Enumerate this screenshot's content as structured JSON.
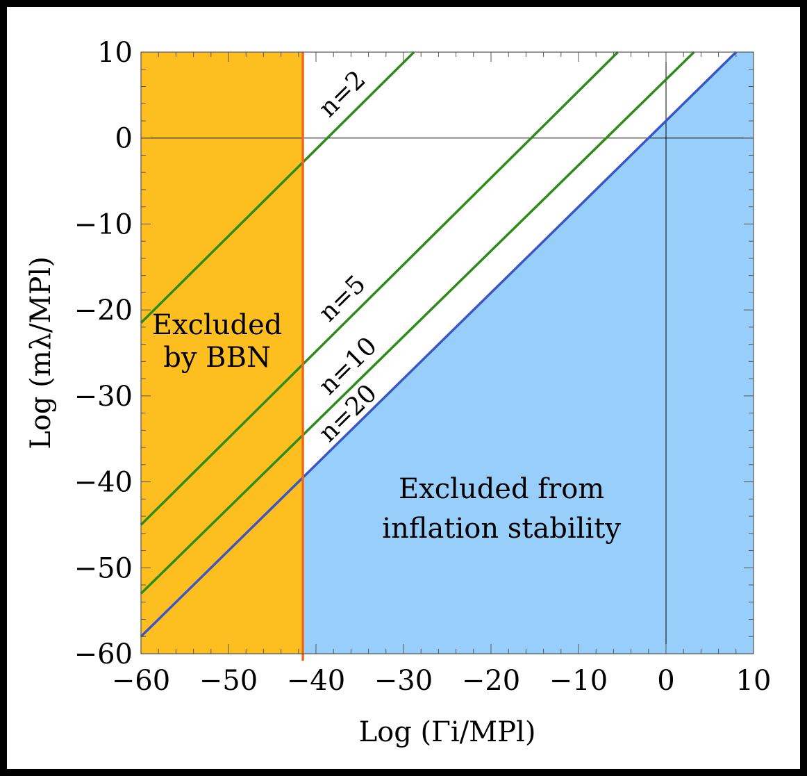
{
  "chart_data": {
    "type": "line",
    "xlabel": "Log (Γi/MPl)",
    "ylabel": "Log (mλ/MPl)",
    "xlim": [
      -60,
      10
    ],
    "ylim": [
      -60,
      10
    ],
    "xticks": [
      -60,
      -50,
      -40,
      -30,
      -20,
      -10,
      0,
      10
    ],
    "yticks": [
      -60,
      -50,
      -40,
      -30,
      -20,
      -10,
      0,
      10
    ],
    "xtick_labels": [
      "−60",
      "−50",
      "−40",
      "−30",
      "−20",
      "−10",
      "0",
      "10"
    ],
    "ytick_labels": [
      "−60",
      "−50",
      "−40",
      "−30",
      "−20",
      "−10",
      "0",
      "10"
    ],
    "bbn_bound_x": -41.5,
    "regions": [
      {
        "label_lines": [
          "Excluded",
          "by BBN"
        ],
        "color": "#FDBE20"
      },
      {
        "label_lines": [
          "Excluded from",
          "inflation stability"
        ],
        "color": "#97CEFA"
      }
    ],
    "series": [
      {
        "name": "n=2",
        "color": "#2E8B1A",
        "x": [
          -60,
          -28.8
        ],
        "y": [
          -21.5,
          10
        ]
      },
      {
        "name": "n=5",
        "color": "#2E8B1A",
        "x": [
          -60,
          -5.5
        ],
        "y": [
          -45,
          10
        ]
      },
      {
        "name": "n=10",
        "color": "#2E8B1A",
        "x": [
          -60,
          3.2
        ],
        "y": [
          -53,
          10
        ]
      },
      {
        "name": "n=20",
        "color": "#3A55C8",
        "x": [
          -60,
          8.0
        ],
        "y": [
          -58,
          10
        ]
      }
    ],
    "grid": false
  }
}
